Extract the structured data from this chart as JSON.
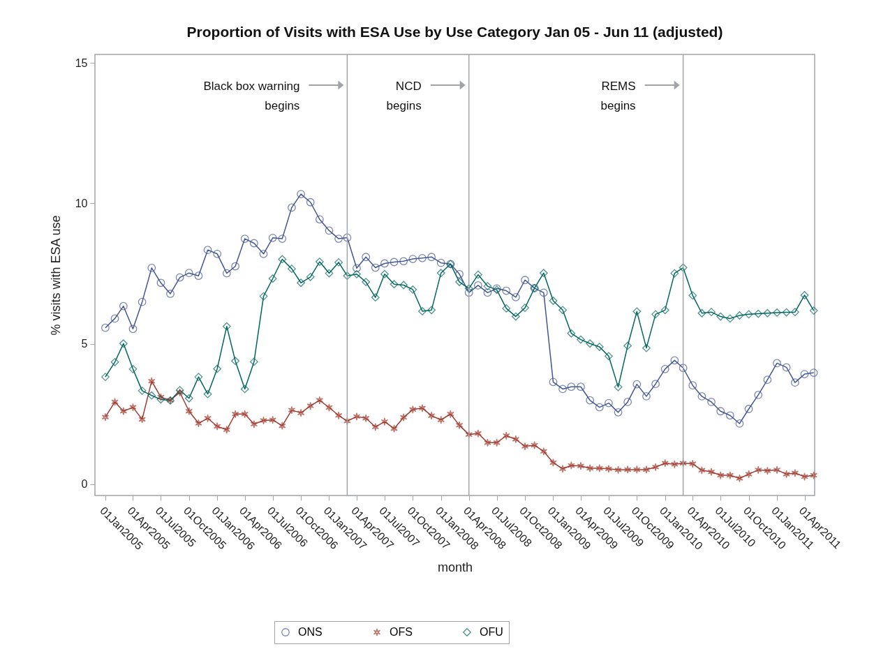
{
  "chart_data": {
    "type": "line",
    "title": "Proportion of Visits with ESA Use by Use Category Jan 05 - Jun 11 (adjusted)",
    "xlabel": "month",
    "ylabel": "% visits with ESA use",
    "x": [
      "2005-01",
      "2005-02",
      "2005-03",
      "2005-04",
      "2005-05",
      "2005-06",
      "2005-07",
      "2005-08",
      "2005-09",
      "2005-10",
      "2005-11",
      "2005-12",
      "2006-01",
      "2006-02",
      "2006-03",
      "2006-04",
      "2006-05",
      "2006-06",
      "2006-07",
      "2006-08",
      "2006-09",
      "2006-10",
      "2006-11",
      "2006-12",
      "2007-01",
      "2007-02",
      "2007-03",
      "2007-04",
      "2007-05",
      "2007-06",
      "2007-07",
      "2007-08",
      "2007-09",
      "2007-10",
      "2007-11",
      "2007-12",
      "2008-01",
      "2008-02",
      "2008-03",
      "2008-04",
      "2008-05",
      "2008-06",
      "2008-07",
      "2008-08",
      "2008-09",
      "2008-10",
      "2008-11",
      "2008-12",
      "2009-01",
      "2009-02",
      "2009-03",
      "2009-04",
      "2009-05",
      "2009-06",
      "2009-07",
      "2009-08",
      "2009-09",
      "2009-10",
      "2009-11",
      "2009-12",
      "2010-01",
      "2010-02",
      "2010-03",
      "2010-04",
      "2010-05",
      "2010-06",
      "2010-07",
      "2010-08",
      "2010-09",
      "2010-10",
      "2010-11",
      "2010-12",
      "2011-01",
      "2011-02",
      "2011-03",
      "2011-04",
      "2011-05"
    ],
    "series": [
      {
        "name": "ONS",
        "color": "#445694",
        "marker": "circle",
        "values": [
          5.57,
          5.9,
          6.34,
          5.53,
          6.49,
          7.7,
          7.17,
          6.78,
          7.36,
          7.52,
          7.42,
          8.34,
          8.2,
          7.51,
          7.76,
          8.74,
          8.58,
          8.2,
          8.77,
          8.74,
          9.85,
          10.33,
          10.04,
          9.43,
          9.03,
          8.74,
          8.78,
          7.69,
          8.09,
          7.71,
          7.86,
          7.91,
          7.94,
          8.02,
          8.05,
          8.09,
          7.88,
          7.84,
          7.48,
          6.82,
          7.08,
          6.82,
          6.97,
          6.89,
          6.66,
          7.27,
          6.98,
          6.82,
          3.64,
          3.39,
          3.47,
          3.47,
          2.99,
          2.74,
          2.89,
          2.56,
          2.93,
          3.56,
          3.13,
          3.57,
          4.1,
          4.41,
          4.14,
          3.52,
          3.13,
          2.93,
          2.6,
          2.45,
          2.16,
          2.68,
          3.18,
          3.72,
          4.31,
          4.16,
          3.62,
          3.92,
          3.97
        ]
      },
      {
        "name": "OFS",
        "color": "#a23a2e",
        "marker": "cross",
        "values": [
          2.39,
          2.93,
          2.6,
          2.74,
          2.31,
          3.67,
          3.1,
          2.99,
          3.27,
          2.6,
          2.17,
          2.35,
          2.06,
          1.94,
          2.5,
          2.5,
          2.14,
          2.27,
          2.29,
          2.08,
          2.64,
          2.54,
          2.79,
          2.99,
          2.73,
          2.45,
          2.25,
          2.41,
          2.35,
          2.04,
          2.23,
          1.98,
          2.38,
          2.66,
          2.71,
          2.44,
          2.29,
          2.5,
          2.1,
          1.77,
          1.81,
          1.48,
          1.48,
          1.73,
          1.6,
          1.35,
          1.39,
          1.17,
          0.77,
          0.55,
          0.67,
          0.65,
          0.57,
          0.57,
          0.55,
          0.51,
          0.52,
          0.52,
          0.52,
          0.61,
          0.75,
          0.71,
          0.75,
          0.73,
          0.5,
          0.44,
          0.32,
          0.32,
          0.21,
          0.36,
          0.51,
          0.48,
          0.51,
          0.36,
          0.4,
          0.27,
          0.32
        ]
      },
      {
        "name": "OFU",
        "color": "#01665e",
        "marker": "diamond",
        "values": [
          3.82,
          4.35,
          5.01,
          4.1,
          3.33,
          3.16,
          3.02,
          2.98,
          3.35,
          3.06,
          3.82,
          3.21,
          4.11,
          5.62,
          4.39,
          3.39,
          4.36,
          6.69,
          7.32,
          8.01,
          7.67,
          7.17,
          7.38,
          7.92,
          7.51,
          7.9,
          7.42,
          7.48,
          7.2,
          6.65,
          7.48,
          7.12,
          7.09,
          6.93,
          6.16,
          6.2,
          7.52,
          7.84,
          7.2,
          6.97,
          7.46,
          7.05,
          6.92,
          6.26,
          5.97,
          6.28,
          6.98,
          7.52,
          6.53,
          6.2,
          5.37,
          5.15,
          5.01,
          4.89,
          4.56,
          3.46,
          4.93,
          6.15,
          4.85,
          6.05,
          6.2,
          7.51,
          7.71,
          6.72,
          6.09,
          6.13,
          5.97,
          5.9,
          6.01,
          6.05,
          6.07,
          6.09,
          6.11,
          6.12,
          6.13,
          6.73,
          6.18
        ]
      }
    ],
    "xlim": [
      "2004-11-28",
      "2011-05-04"
    ],
    "xticks": [
      {
        "value": "2005-01-01",
        "label": "01Jan2005"
      },
      {
        "value": "2005-04-01",
        "label": "01Apr2005"
      },
      {
        "value": "2005-07-01",
        "label": "01Jul2005"
      },
      {
        "value": "2005-10-01",
        "label": "01Oct2005"
      },
      {
        "value": "2006-01-01",
        "label": "01Jan2006"
      },
      {
        "value": "2006-04-01",
        "label": "01Apr2006"
      },
      {
        "value": "2006-07-01",
        "label": "01Jul2006"
      },
      {
        "value": "2006-10-01",
        "label": "01Oct2006"
      },
      {
        "value": "2007-01-01",
        "label": "01Jan2007"
      },
      {
        "value": "2007-04-01",
        "label": "01Apr2007"
      },
      {
        "value": "2007-07-01",
        "label": "01Jul2007"
      },
      {
        "value": "2007-10-01",
        "label": "01Oct2007"
      },
      {
        "value": "2008-01-01",
        "label": "01Jan2008"
      },
      {
        "value": "2008-04-01",
        "label": "01Apr2008"
      },
      {
        "value": "2008-07-01",
        "label": "01Jul2008"
      },
      {
        "value": "2008-10-01",
        "label": "01Oct2008"
      },
      {
        "value": "2009-01-01",
        "label": "01Jan2009"
      },
      {
        "value": "2009-04-01",
        "label": "01Apr2009"
      },
      {
        "value": "2009-07-01",
        "label": "01Jul2009"
      },
      {
        "value": "2009-10-01",
        "label": "01Oct2009"
      },
      {
        "value": "2010-01-01",
        "label": "01Jan2010"
      },
      {
        "value": "2010-04-01",
        "label": "01Apr2010"
      },
      {
        "value": "2010-07-01",
        "label": "01Jul2010"
      },
      {
        "value": "2010-10-01",
        "label": "01Oct2010"
      },
      {
        "value": "2011-01-01",
        "label": "01Jan2011"
      },
      {
        "value": "2011-04-01",
        "label": "01Apr2011"
      }
    ],
    "ylim": [
      -0.4,
      15.3
    ],
    "yticks": [
      0,
      5,
      10,
      15
    ],
    "ref_lines": [
      {
        "axis": "x",
        "value": "2007-03-01",
        "color": "#a0a4a8"
      },
      {
        "axis": "x",
        "value": "2008-04-01",
        "color": "#a0a4a8"
      },
      {
        "axis": "x",
        "value": "2010-03-01",
        "color": "#a0a4a8"
      }
    ],
    "annotations": [
      "Black box warning\nbegins",
      "NCD\nbegins",
      "REMS\nbegins"
    ],
    "grid": false,
    "legend": "bottom",
    "line_style": "solid"
  }
}
